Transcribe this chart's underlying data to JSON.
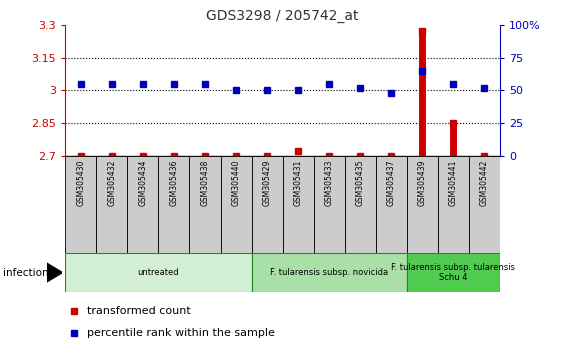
{
  "title": "GDS3298 / 205742_at",
  "samples": [
    "GSM305430",
    "GSM305432",
    "GSM305434",
    "GSM305436",
    "GSM305438",
    "GSM305440",
    "GSM305429",
    "GSM305431",
    "GSM305433",
    "GSM305435",
    "GSM305437",
    "GSM305439",
    "GSM305441",
    "GSM305442"
  ],
  "transformed_count": [
    2.7,
    2.7,
    2.7,
    2.7,
    2.7,
    2.7,
    2.7,
    2.72,
    2.7,
    2.7,
    2.7,
    3.27,
    2.85,
    2.7
  ],
  "percentile_rank": [
    55,
    55,
    55,
    55,
    55,
    50,
    50,
    50,
    55,
    52,
    48,
    65,
    55,
    52
  ],
  "ylim_left": [
    2.7,
    3.3
  ],
  "ylim_right": [
    0,
    100
  ],
  "yticks_left": [
    2.7,
    2.85,
    3.0,
    3.15,
    3.3
  ],
  "yticks_right": [
    0,
    25,
    50,
    75,
    100
  ],
  "ytick_labels_left": [
    "2.7",
    "2.85",
    "3",
    "3.15",
    "3.3"
  ],
  "ytick_labels_right": [
    "0",
    "25",
    "50",
    "75",
    "100%"
  ],
  "hlines": [
    2.85,
    3.0,
    3.15
  ],
  "groups": [
    {
      "label": "untreated",
      "start": 0,
      "end": 5,
      "color": "#d4f0d4"
    },
    {
      "label": "F. tularensis subsp. novicida",
      "start": 6,
      "end": 10,
      "color": "#a8e0a8"
    },
    {
      "label": "F. tularensis subsp. tularensis\nSchu 4",
      "start": 11,
      "end": 13,
      "color": "#50cc50"
    }
  ],
  "infection_label": "infection",
  "legend_red_label": "transformed count",
  "legend_blue_label": "percentile rank within the sample",
  "title_color": "#333333",
  "red_color": "#cc0000",
  "blue_color": "#0000bb",
  "left_axis_color": "#cc0000",
  "right_axis_color": "#0000bb",
  "bg_color": "#ffffff",
  "plot_bg": "#ffffff",
  "grid_color": "#000000",
  "bar_bg": "#cccccc"
}
